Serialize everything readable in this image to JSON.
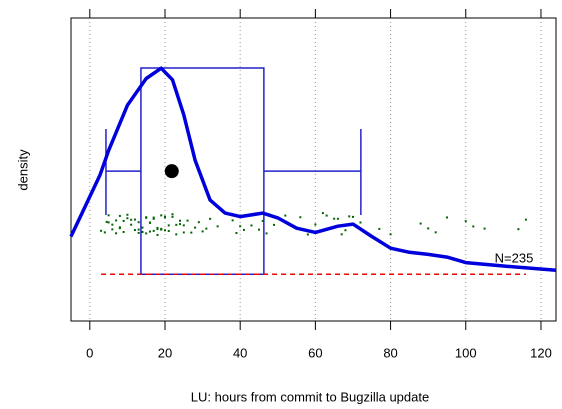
{
  "chart_data": {
    "type": "density",
    "x_label": "LU: hours from commit to Bugzilla update",
    "y_label": "density",
    "annotation": "N=235",
    "xlim": [
      -5,
      124
    ],
    "ylim": [
      -0.0068,
      0.0373
    ],
    "xticks": [
      0,
      20,
      40,
      60,
      80,
      100,
      120
    ],
    "grid": true,
    "color": "#0000dd",
    "x": [
      -5,
      2.7,
      5,
      10,
      15,
      19,
      22,
      25,
      28,
      32,
      36,
      40,
      46,
      50,
      55,
      60,
      66,
      70,
      75,
      80,
      85,
      90,
      95,
      100,
      110,
      124
    ],
    "values": [
      0.0055,
      0.0144,
      0.018,
      0.0246,
      0.0285,
      0.03,
      0.0283,
      0.0232,
      0.0166,
      0.0108,
      0.0089,
      0.0084,
      0.0089,
      0.0082,
      0.0067,
      0.0061,
      0.007,
      0.0073,
      0.0055,
      0.0038,
      0.0032,
      0.0029,
      0.0025,
      0.0017,
      0.0012,
      0.0006
    ],
    "boxplot": {
      "color": "#2222cc",
      "whisker_low": 4.3,
      "q1": 13.6,
      "q3": 46.3,
      "whisker_high": 72.1,
      "mean": 21.8
    },
    "points": {
      "color": "#006400",
      "x": [
        3,
        4,
        4.5,
        5,
        5,
        6,
        6,
        7,
        7,
        8,
        8,
        8,
        9,
        9,
        10,
        10,
        11,
        11,
        12,
        12,
        13,
        13,
        13,
        14,
        14,
        14,
        15,
        15,
        15,
        16,
        16,
        16,
        17,
        17,
        17,
        18,
        18,
        18,
        19,
        19,
        19,
        20,
        20,
        20,
        21,
        21,
        22,
        22,
        23,
        23,
        24,
        24,
        25,
        25,
        26,
        27,
        28,
        29,
        30,
        31,
        32,
        34,
        37,
        38,
        39,
        40,
        41,
        42,
        43,
        44,
        45,
        46,
        47,
        49,
        52,
        56,
        58,
        60,
        62,
        63,
        65,
        66,
        67,
        68,
        69,
        70,
        71,
        72,
        77,
        80,
        88,
        90,
        92,
        95,
        100,
        102,
        105,
        114,
        116
      ]
    },
    "range_line_color": "#ee0000"
  }
}
